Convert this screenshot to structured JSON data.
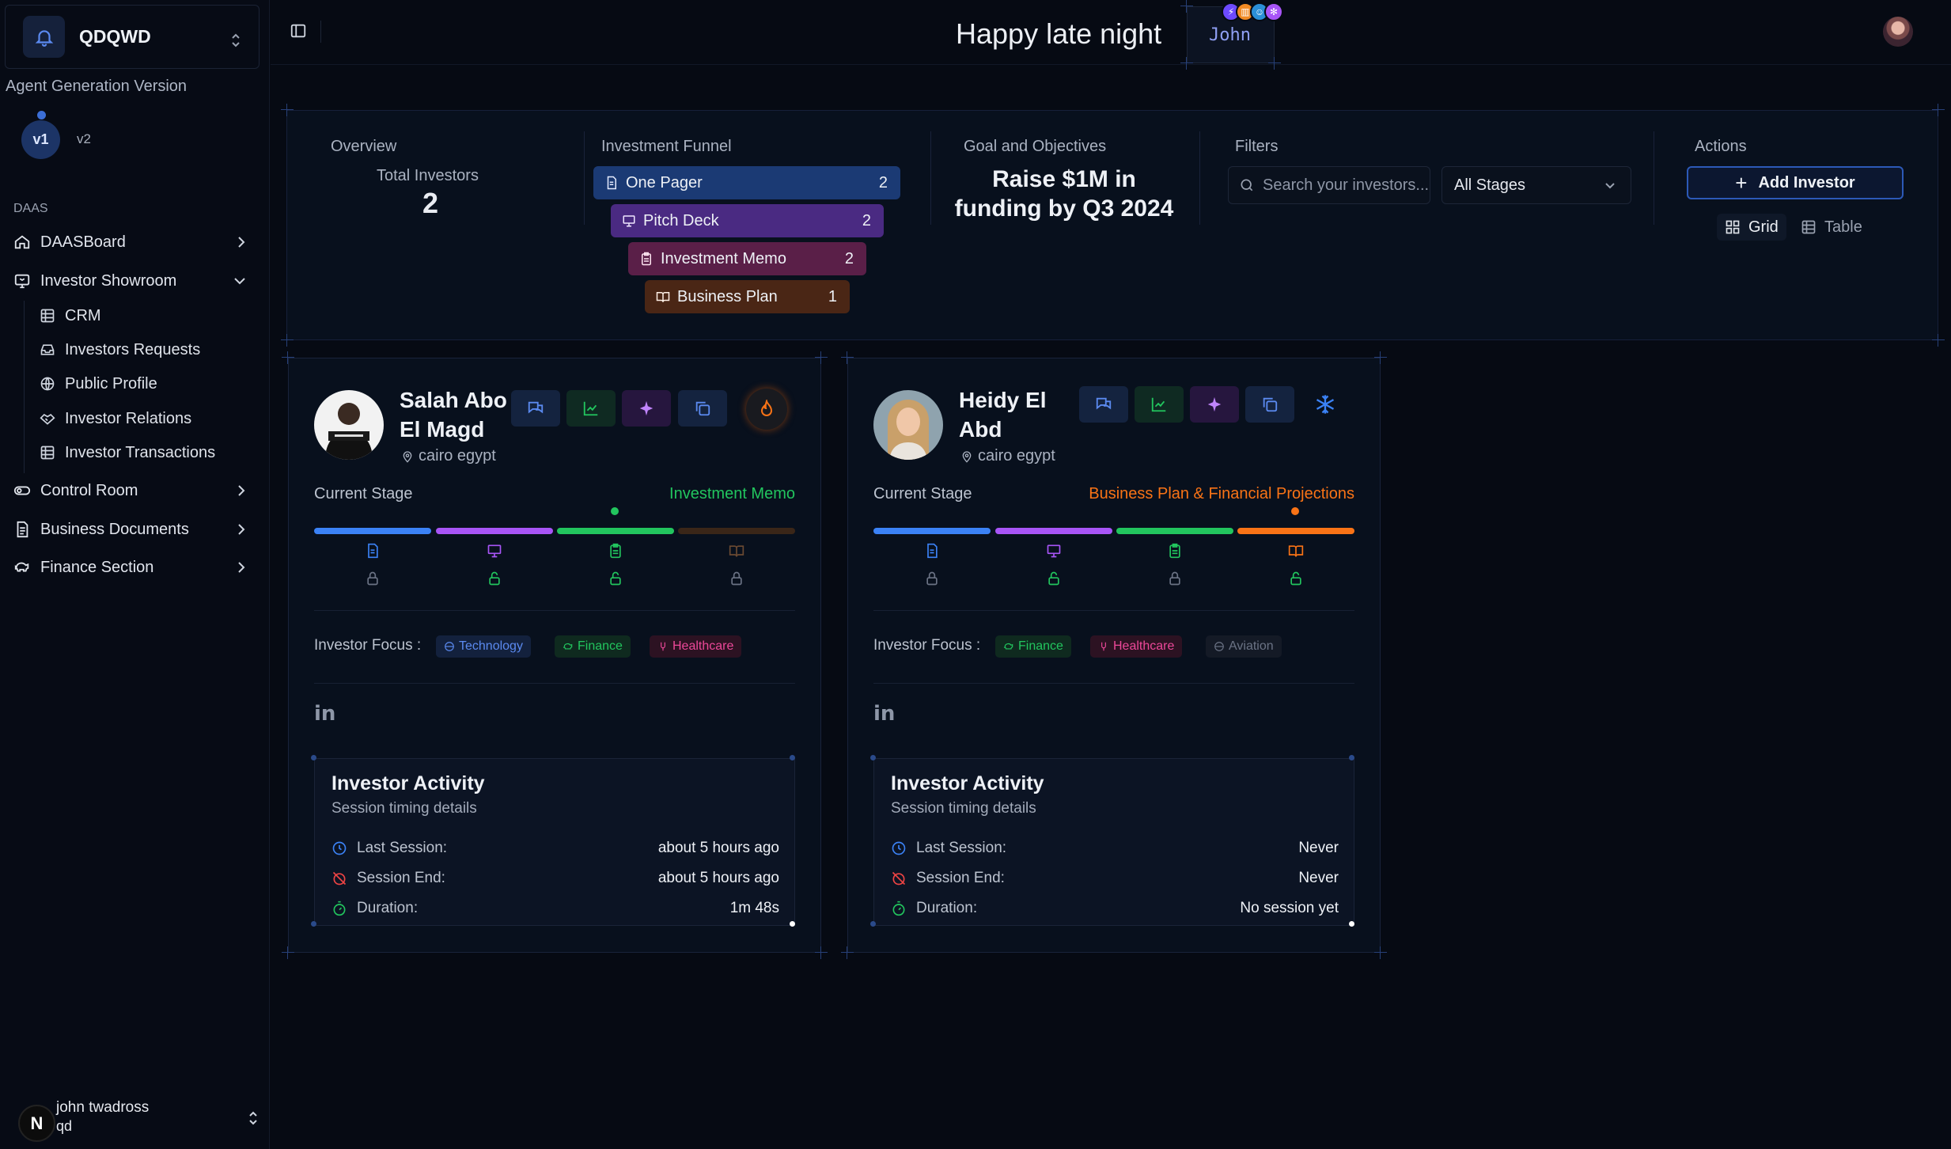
{
  "sidebar": {
    "workspace": "QDQWD",
    "version_title": "Agent Generation Version",
    "versions": [
      "v1",
      "v2"
    ],
    "section": "DAAS",
    "nav": {
      "daasboard": "DAASBoard",
      "investor_showroom": "Investor Showroom",
      "crm": "CRM",
      "investors_requests": "Investors Requests",
      "public_profile": "Public Profile",
      "investor_relations": "Investor Relations",
      "investor_transactions": "Investor Transactions",
      "control_room": "Control Room",
      "business_documents": "Business Documents",
      "finance_section": "Finance Section"
    },
    "user": {
      "initial": "N",
      "name": "john twadross",
      "email": "qd"
    }
  },
  "header": {
    "greeting": "Happy late night",
    "user": "John"
  },
  "overview": {
    "title": "Overview",
    "total_label": "Total Investors",
    "total_value": "2",
    "funnel_title": "Investment Funnel",
    "funnel": [
      {
        "label": "One Pager",
        "count": "2"
      },
      {
        "label": "Pitch Deck",
        "count": "2"
      },
      {
        "label": "Investment Memo",
        "count": "2"
      },
      {
        "label": "Business Plan",
        "count": "1"
      }
    ],
    "goal_title": "Goal and Objectives",
    "goal": "Raise $1M in funding by Q3 2024",
    "filters_title": "Filters",
    "search_placeholder": "Search your investors...",
    "stage_select": "All Stages",
    "actions_title": "Actions",
    "add_investor": "Add Investor",
    "view_grid": "Grid",
    "view_table": "Table"
  },
  "cards": [
    {
      "name": "Salah Abo El Magd",
      "location": "cairo egypt",
      "stage_label": "Current Stage",
      "stage": "Investment Memo",
      "stage_color": "#22c55e",
      "focus_label": "Investor Focus :",
      "tags": [
        "Technology",
        "Finance",
        "Healthcare"
      ],
      "activity": {
        "title": "Investor Activity",
        "subtitle": "Session timing details",
        "last_label": "Last Session:",
        "last": "about 5 hours ago",
        "end_label": "Session End:",
        "end": "about 5 hours ago",
        "dur_label": "Duration:",
        "dur": "1m 48s"
      }
    },
    {
      "name": "Heidy El Abd",
      "location": "cairo egypt",
      "stage_label": "Current Stage",
      "stage": "Business Plan & Financial Projections",
      "stage_color": "#f97316",
      "focus_label": "Investor Focus :",
      "tags": [
        "Finance",
        "Healthcare",
        "Aviation"
      ],
      "activity": {
        "title": "Investor Activity",
        "subtitle": "Session timing details",
        "last_label": "Last Session:",
        "last": "Never",
        "end_label": "Session End:",
        "end": "Never",
        "dur_label": "Duration:",
        "dur": "No session yet"
      }
    }
  ]
}
